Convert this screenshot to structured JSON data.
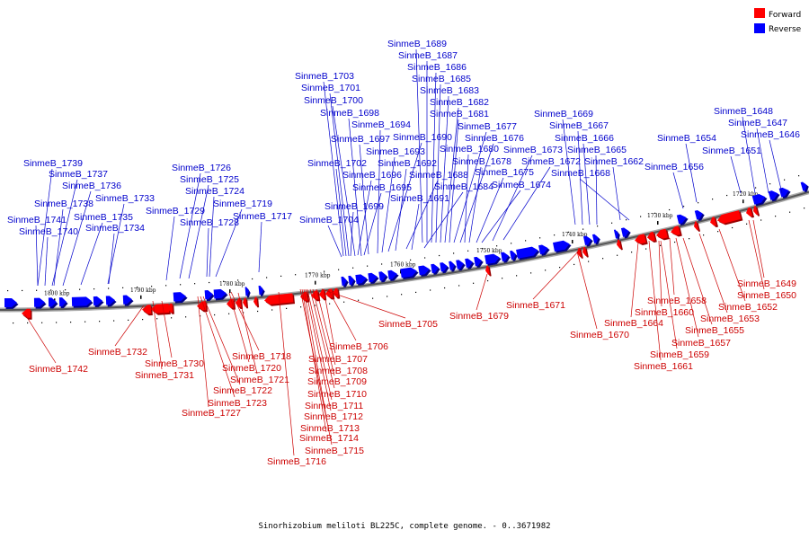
{
  "colors": {
    "forward": "#ff0000",
    "reverse": "#0000ff",
    "forward_dark": "#cc0000",
    "reverse_dark": "#0000cc",
    "line_fwd": "#cc0000",
    "line_rev": "#0000cc"
  },
  "legend": {
    "forward": "Forward",
    "reverse": "Reverse"
  },
  "caption": "Sinorhizobium meliloti BL225C, complete genome. - 0..3671982",
  "ticks": [
    "1800 kbp",
    "1790 kbp",
    "1780 kbp",
    "1770 kbp",
    "1760 kbp",
    "1750 kbp",
    "1740 kbp",
    "1730 kbp",
    "1720 kbp"
  ],
  "reverse_labels": [
    "SinmeB_1689",
    "SinmeB_1687",
    "SinmeB_1686",
    "SinmeB_1685",
    "SinmeB_1703",
    "SinmeB_1701",
    "SinmeB_1700",
    "SinmeB_1683",
    "SinmeB_1682",
    "SinmeB_1698",
    "SinmeB_1681",
    "SinmeB_1669",
    "SinmeB_1648",
    "SinmeB_1694",
    "SinmeB_1677",
    "SinmeB_1667",
    "SinmeB_1647",
    "SinmeB_1697",
    "SinmeB_1690",
    "SinmeB_1676",
    "SinmeB_1666",
    "SinmeB_1654",
    "SinmeB_1646",
    "SinmeB_1693",
    "SinmeB_1680",
    "SinmeB_1673",
    "SinmeB_1665",
    "SinmeB_1651",
    "SinmeB_1739",
    "SinmeB_1702",
    "SinmeB_1692",
    "SinmeB_1678",
    "SinmeB_1672",
    "SinmeB_1662",
    "SinmeB_1726",
    "SinmeB_1656",
    "SinmeB_1737",
    "SinmeB_1696",
    "SinmeB_1688",
    "SinmeB_1675",
    "SinmeB_1668",
    "SinmeB_1725",
    "SinmeB_1736",
    "SinmeB_1695",
    "SinmeB_1684",
    "SinmeB_1674",
    "SinmeB_1724",
    "SinmeB_1733",
    "SinmeB_1691",
    "SinmeB_1738",
    "SinmeB_1719",
    "SinmeB_1699",
    "SinmeB_1729",
    "SinmeB_1735",
    "SinmeB_1717",
    "SinmeB_1741",
    "SinmeB_1728",
    "SinmeB_1704",
    "SinmeB_1734",
    "SinmeB_1740"
  ],
  "forward_labels": [
    "SinmeB_1649",
    "SinmeB_1650",
    "SinmeB_1652",
    "SinmeB_1658",
    "SinmeB_1671",
    "SinmeB_1653",
    "SinmeB_1660",
    "SinmeB_1679",
    "SinmeB_1705",
    "SinmeB_1664",
    "SinmeB_1655",
    "SinmeB_1670",
    "SinmeB_1657",
    "SinmeB_1706",
    "SinmeB_1732",
    "SinmeB_1659",
    "SinmeB_1718",
    "SinmeB_1707",
    "SinmeB_1730",
    "SinmeB_1661",
    "SinmeB_1742",
    "SinmeB_1720",
    "SinmeB_1708",
    "SinmeB_1731",
    "SinmeB_1721",
    "SinmeB_1709",
    "SinmeB_1722",
    "SinmeB_1710",
    "SinmeB_1723",
    "SinmeB_1711",
    "SinmeB_1727",
    "SinmeB_1712",
    "SinmeB_1713",
    "SinmeB_1714",
    "SinmeB_1715",
    "SinmeB_1716"
  ]
}
